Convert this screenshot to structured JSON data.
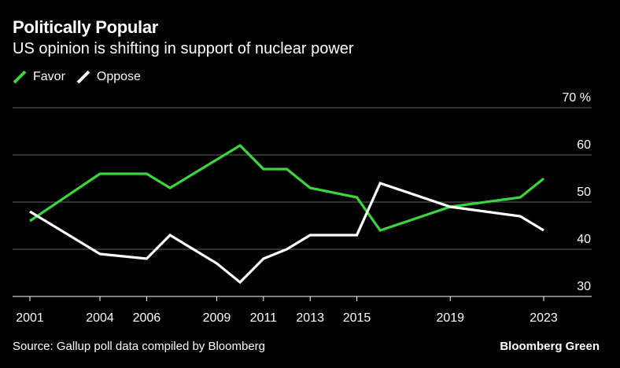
{
  "header": {
    "title": "Politically Popular",
    "subtitle": "US opinion is shifting in support of nuclear power"
  },
  "legend": {
    "favor_label": "Favor",
    "oppose_label": "Oppose"
  },
  "footer": {
    "source": "Source: Gallup poll data compiled by Bloomberg",
    "brand": "Bloomberg Green"
  },
  "colors": {
    "background": "#000000",
    "favor": "#3bd53e",
    "oppose": "#ffffff",
    "grid": "#666666"
  },
  "chart_data": {
    "type": "line",
    "title": "Politically Popular",
    "subtitle": "US opinion is shifting in support of nuclear power",
    "xlabel": "",
    "ylabel": "",
    "y_unit": "%",
    "xlim": [
      2001,
      2023
    ],
    "ylim": [
      30,
      70
    ],
    "yticks": [
      30,
      40,
      50,
      60,
      70
    ],
    "xticks": [
      2001,
      2004,
      2006,
      2009,
      2011,
      2013,
      2015,
      2019,
      2023
    ],
    "grid": true,
    "legend_position": "top-left",
    "series": [
      {
        "name": "Favor",
        "color": "#3bd53e",
        "points": [
          [
            2001,
            46
          ],
          [
            2004,
            56
          ],
          [
            2006,
            56
          ],
          [
            2007,
            53
          ],
          [
            2010,
            62
          ],
          [
            2011,
            57
          ],
          [
            2012,
            57
          ],
          [
            2013,
            53
          ],
          [
            2015,
            51
          ],
          [
            2016,
            44
          ],
          [
            2019,
            49
          ],
          [
            2022,
            51
          ],
          [
            2023,
            55
          ]
        ]
      },
      {
        "name": "Oppose",
        "color": "#ffffff",
        "points": [
          [
            2001,
            48
          ],
          [
            2004,
            39
          ],
          [
            2006,
            38
          ],
          [
            2007,
            43
          ],
          [
            2009,
            37
          ],
          [
            2010,
            33
          ],
          [
            2011,
            38
          ],
          [
            2012,
            40
          ],
          [
            2013,
            43
          ],
          [
            2015,
            43
          ],
          [
            2016,
            54
          ],
          [
            2019,
            49
          ],
          [
            2022,
            47
          ],
          [
            2023,
            44
          ]
        ]
      }
    ]
  }
}
